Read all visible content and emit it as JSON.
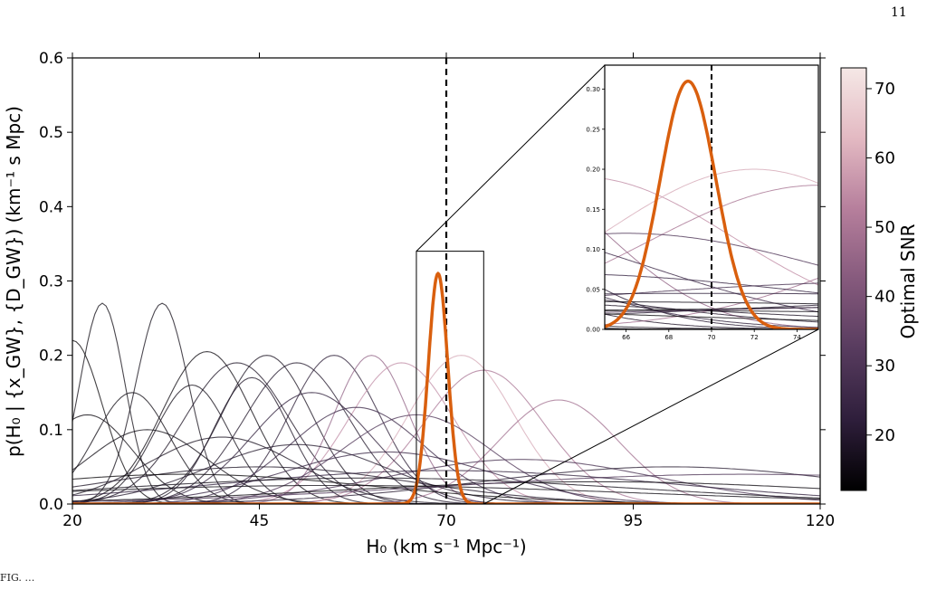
{
  "page": {
    "page_number": "11",
    "caption_fragment": "FIG. …"
  },
  "chart_data": {
    "type": "line",
    "title": "",
    "xlabel": "H₀ (km s⁻¹ Mpc⁻¹)",
    "ylabel": "p(H₀ | {x_GW}, {D_GW}) (km⁻¹ s Mpc)",
    "xlim": [
      20,
      120
    ],
    "ylim": [
      0,
      0.6
    ],
    "xticks": [
      20,
      45,
      70,
      95,
      120
    ],
    "xtick_labels": [
      "20",
      "45",
      "70",
      "95",
      "120"
    ],
    "yticks": [
      0.0,
      0.1,
      0.2,
      0.3,
      0.4,
      0.5,
      0.6
    ],
    "ytick_labels": [
      "0.0",
      "0.1",
      "0.2",
      "0.3",
      "0.4",
      "0.5",
      "0.6"
    ],
    "grid": false,
    "reference_line": {
      "x": 70,
      "style": "dashed",
      "color": "#000000"
    },
    "combined_posterior": {
      "mean": 68.9,
      "sigma": 1.3,
      "peak": 0.31,
      "color": "#d95f0e"
    },
    "event_curves_summary": {
      "note": "Individual event posteriors colored by optimal SNR; approximated as Gaussian bumps",
      "curves": [
        {
          "mu": 24,
          "sigma": 3,
          "peak": 0.27,
          "snr": 15
        },
        {
          "mu": 32,
          "sigma": 3.5,
          "peak": 0.27,
          "snr": 16
        },
        {
          "mu": 38,
          "sigma": 6,
          "peak": 0.205,
          "snr": 14
        },
        {
          "mu": 42,
          "sigma": 7,
          "peak": 0.19,
          "snr": 18
        },
        {
          "mu": 46,
          "sigma": 6,
          "peak": 0.2,
          "snr": 17
        },
        {
          "mu": 50,
          "sigma": 7,
          "peak": 0.19,
          "snr": 19
        },
        {
          "mu": 55,
          "sigma": 6,
          "peak": 0.2,
          "snr": 21
        },
        {
          "mu": 60,
          "sigma": 5,
          "peak": 0.2,
          "snr": 45
        },
        {
          "mu": 64,
          "sigma": 7,
          "peak": 0.19,
          "snr": 55
        },
        {
          "mu": 72,
          "sigma": 7,
          "peak": 0.2,
          "snr": 60
        },
        {
          "mu": 75,
          "sigma": 8,
          "peak": 0.18,
          "snr": 50
        },
        {
          "mu": 85,
          "sigma": 8,
          "peak": 0.14,
          "snr": 48
        },
        {
          "mu": 20,
          "sigma": 4,
          "peak": 0.22,
          "snr": 13
        },
        {
          "mu": 22,
          "sigma": 6,
          "peak": 0.12,
          "snr": 14
        },
        {
          "mu": 28,
          "sigma": 5,
          "peak": 0.15,
          "snr": 15
        },
        {
          "mu": 36,
          "sigma": 5,
          "peak": 0.16,
          "snr": 16
        },
        {
          "mu": 44,
          "sigma": 5,
          "peak": 0.17,
          "snr": 18
        },
        {
          "mu": 52,
          "sigma": 8,
          "peak": 0.15,
          "snr": 22
        },
        {
          "mu": 58,
          "sigma": 9,
          "peak": 0.13,
          "snr": 25
        },
        {
          "mu": 66,
          "sigma": 10,
          "peak": 0.12,
          "snr": 30
        },
        {
          "mu": 30,
          "sigma": 8,
          "peak": 0.1,
          "snr": 15
        },
        {
          "mu": 40,
          "sigma": 10,
          "peak": 0.09,
          "snr": 17
        },
        {
          "mu": 50,
          "sigma": 12,
          "peak": 0.08,
          "snr": 19
        },
        {
          "mu": 62,
          "sigma": 14,
          "peak": 0.07,
          "snr": 24
        },
        {
          "mu": 80,
          "sigma": 18,
          "peak": 0.06,
          "snr": 28
        },
        {
          "mu": 100,
          "sigma": 25,
          "peak": 0.05,
          "snr": 20
        },
        {
          "mu": 45,
          "sigma": 20,
          "peak": 0.05,
          "snr": 18
        },
        {
          "mu": 70,
          "sigma": 30,
          "peak": 0.045,
          "snr": 22
        },
        {
          "mu": 60,
          "sigma": 35,
          "peak": 0.035,
          "snr": 16
        },
        {
          "mu": 90,
          "sigma": 35,
          "peak": 0.03,
          "snr": 14
        },
        {
          "mu": 35,
          "sigma": 25,
          "peak": 0.04,
          "snr": 13
        },
        {
          "mu": 55,
          "sigma": 40,
          "peak": 0.025,
          "snr": 15
        },
        {
          "mu": 110,
          "sigma": 40,
          "peak": 0.04,
          "snr": 30
        }
      ]
    },
    "inset": {
      "xlim": [
        65,
        75
      ],
      "ylim": [
        0,
        0.33
      ],
      "xticks": [
        66,
        68,
        70,
        72,
        74
      ],
      "xtick_labels": [
        "66",
        "68",
        "70",
        "72",
        "74"
      ],
      "yticks": [
        0.0,
        0.05,
        0.1,
        0.15,
        0.2,
        0.25,
        0.3
      ],
      "ytick_labels": [
        "0.00",
        "0.05",
        "0.10",
        "0.15",
        "0.20",
        "0.25",
        "0.30"
      ],
      "zoom_region": {
        "x": [
          66,
          75
        ],
        "y": [
          0,
          0.34
        ]
      }
    },
    "colorbar": {
      "label": "Optimal SNR",
      "range": [
        12,
        73
      ],
      "ticks": [
        20,
        30,
        40,
        50,
        60,
        70
      ],
      "tick_labels": [
        "20",
        "30",
        "40",
        "50",
        "60",
        "70"
      ],
      "colors": [
        "#000000",
        "#2e1e3b",
        "#573b5e",
        "#865a7d",
        "#b67f9c",
        "#e3b9c2",
        "#f5e8e6"
      ]
    }
  }
}
